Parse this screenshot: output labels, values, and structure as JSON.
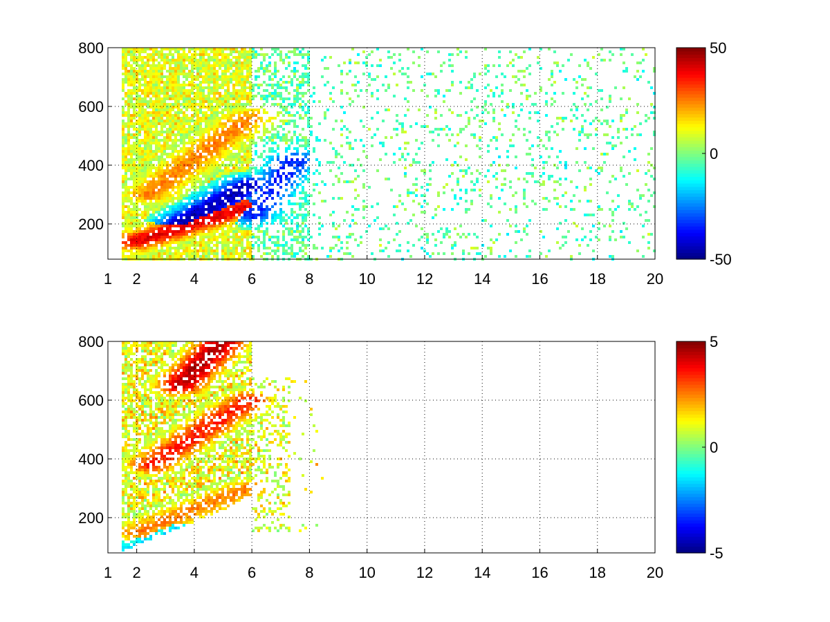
{
  "chart_data": [
    {
      "type": "heatmap",
      "title": "",
      "xlabel": "",
      "ylabel": "",
      "xlim": [
        1,
        20
      ],
      "ylim": [
        80,
        800
      ],
      "x_ticks": [
        1,
        2,
        4,
        6,
        8,
        10,
        12,
        14,
        16,
        18,
        20
      ],
      "y_ticks": [
        200,
        400,
        600,
        800
      ],
      "grid": true,
      "colormap": "jet",
      "colorbar": {
        "range": [
          -50,
          50
        ],
        "ticks": [
          50,
          0,
          -50
        ],
        "placement": "right"
      },
      "features": [
        {
          "name": "positive ridge",
          "from": [
            2.0,
            140
          ],
          "to": [
            5.9,
            260
          ],
          "value": 40
        },
        {
          "name": "upper positive ridge",
          "from": [
            2.4,
            300
          ],
          "to": [
            5.9,
            560
          ],
          "value": 25
        },
        {
          "name": "negative blob",
          "from": [
            3.5,
            200
          ],
          "to": [
            5.9,
            330
          ],
          "value": -45
        },
        {
          "name": "negative region",
          "from": [
            6.0,
            230
          ],
          "to": [
            7.5,
            420
          ],
          "value": -35
        }
      ],
      "sparse_field": {
        "x_range": [
          6,
          20
        ],
        "y_range": [
          80,
          800
        ],
        "typical_values": [
          -12,
          6
        ]
      }
    },
    {
      "type": "heatmap",
      "title": "",
      "xlabel": "",
      "ylabel": "",
      "xlim": [
        1,
        20
      ],
      "ylim": [
        80,
        800
      ],
      "x_ticks": [
        1,
        2,
        4,
        6,
        8,
        10,
        12,
        14,
        16,
        18,
        20
      ],
      "y_ticks": [
        200,
        400,
        600,
        800
      ],
      "grid": true,
      "colormap": "jet",
      "colorbar": {
        "range": [
          -5,
          5
        ],
        "ticks": [
          5,
          0,
          -5
        ],
        "placement": "right"
      },
      "features": [
        {
          "name": "lower positive ridge",
          "from": [
            2.0,
            150
          ],
          "to": [
            5.9,
            300
          ],
          "value": 2.5
        },
        {
          "name": "upper positive ridge",
          "from": [
            2.5,
            380
          ],
          "to": [
            5.9,
            600
          ],
          "value": 3.5
        },
        {
          "name": "top patch",
          "from": [
            3.5,
            650
          ],
          "to": [
            5.0,
            800
          ],
          "value": 4.5
        },
        {
          "name": "low negative streak",
          "from": [
            1.8,
            90
          ],
          "to": [
            3.5,
            160
          ],
          "value": -1.5
        }
      ],
      "sparse_field": {
        "x_range": [
          6,
          8.5
        ],
        "y_range": [
          150,
          680
        ],
        "typical_values": [
          0,
          2
        ]
      }
    }
  ]
}
